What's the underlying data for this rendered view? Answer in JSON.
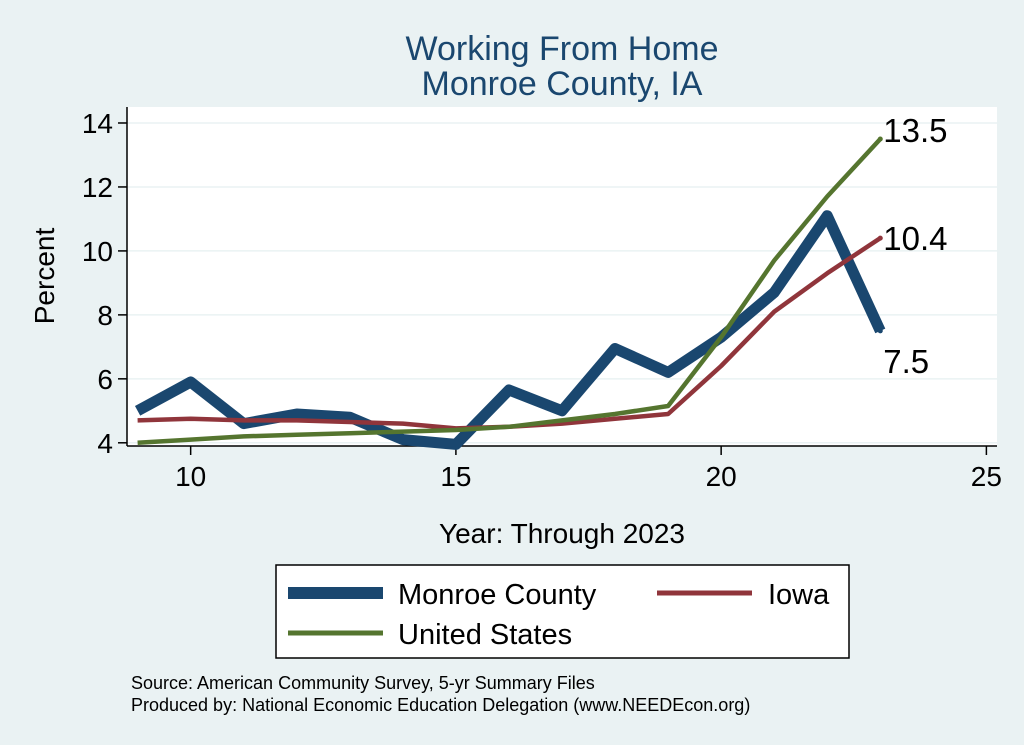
{
  "chart_data": {
    "type": "line",
    "title": "Working From Home",
    "subtitle": "Monroe County, IA",
    "xlabel": "Year: Through 2023",
    "ylabel": "Percent",
    "xlim": [
      8.8,
      25.2
    ],
    "ylim": [
      3.9,
      14.5
    ],
    "xticks": [
      10,
      15,
      20,
      25
    ],
    "yticks": [
      4,
      6,
      8,
      10,
      12,
      14
    ],
    "grid": true,
    "legend_position": "bottom",
    "series": [
      {
        "name": "Monroe County",
        "color": "#1a476f",
        "x": [
          9,
          10,
          11,
          12,
          13,
          14,
          15,
          16,
          17,
          18,
          19,
          20,
          21,
          22,
          23
        ],
        "values": [
          5.0,
          5.9,
          4.6,
          4.9,
          4.8,
          4.1,
          3.95,
          5.65,
          5.0,
          6.95,
          6.2,
          7.3,
          8.7,
          11.1,
          7.5
        ],
        "end_label": "7.5"
      },
      {
        "name": "Iowa",
        "color": "#90353b",
        "x": [
          9,
          10,
          11,
          12,
          13,
          14,
          15,
          16,
          17,
          18,
          19,
          20,
          21,
          22,
          23
        ],
        "values": [
          4.7,
          4.75,
          4.7,
          4.7,
          4.65,
          4.6,
          4.45,
          4.5,
          4.6,
          4.75,
          4.9,
          6.4,
          8.1,
          9.3,
          10.4
        ],
        "end_label": "10.4"
      },
      {
        "name": "United States",
        "color": "#55752f",
        "x": [
          9,
          10,
          11,
          12,
          13,
          14,
          15,
          16,
          17,
          18,
          19,
          20,
          21,
          22,
          23
        ],
        "values": [
          4.0,
          4.1,
          4.2,
          4.25,
          4.3,
          4.35,
          4.4,
          4.5,
          4.7,
          4.9,
          5.15,
          7.3,
          9.7,
          11.7,
          13.5
        ],
        "end_label": "13.5"
      }
    ],
    "notes": [
      "Source: American Community Survey, 5-yr Summary Files",
      "Produced by: National Economic Education Delegation (www.NEEDEcon.org)"
    ]
  }
}
